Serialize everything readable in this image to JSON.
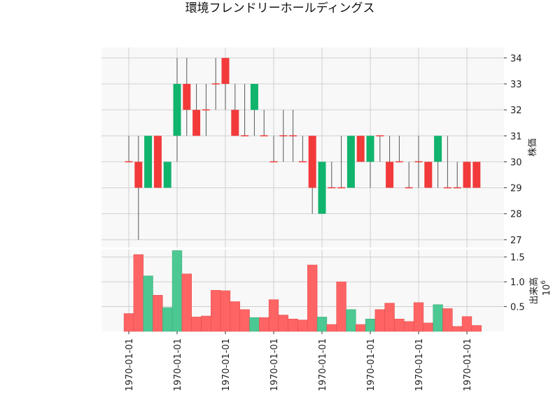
{
  "chart_data": {
    "type": "candlestick",
    "title": "環境フレンドリーホールディングス",
    "colors": {
      "up": "#10b46c",
      "down": "#f23a3a",
      "volume_up": "#4cc892",
      "volume_down": "#ff6464",
      "panel_bg": "#f8f8f8",
      "grid": "#d0d0d0"
    },
    "x_tick_labels": [
      "1970-01-01",
      "1970-01-01",
      "1970-01-01",
      "1970-01-01",
      "1970-01-01",
      "1970-01-01",
      "1970-01-01",
      "1970-01-01"
    ],
    "price_axis": {
      "label": "株価",
      "ylim": [
        26.7,
        34.4
      ],
      "ticks": [
        "27",
        "28",
        "29",
        "30",
        "31",
        "32",
        "33",
        "34"
      ]
    },
    "volume_axis": {
      "label": "出来高",
      "scale_label": "10",
      "scale_exp": "6",
      "ylim": [
        0,
        1.65
      ],
      "ticks": [
        "0.5",
        "1.0",
        "1.5"
      ]
    },
    "candles": [
      {
        "o": 30,
        "h": 31,
        "l": 30,
        "c": 30,
        "v": 0.36
      },
      {
        "o": 30,
        "h": 31,
        "l": 27,
        "c": 29,
        "v": 1.55
      },
      {
        "o": 29,
        "h": 31,
        "l": 29,
        "c": 31,
        "v": 1.12
      },
      {
        "o": 31,
        "h": 31,
        "l": 29,
        "c": 29,
        "v": 0.73
      },
      {
        "o": 29,
        "h": 30,
        "l": 29,
        "c": 30,
        "v": 0.48
      },
      {
        "o": 31,
        "h": 34,
        "l": 30,
        "c": 33,
        "v": 1.63
      },
      {
        "o": 33,
        "h": 34,
        "l": 31,
        "c": 32,
        "v": 1.16
      },
      {
        "o": 32,
        "h": 33,
        "l": 31,
        "c": 31,
        "v": 0.29
      },
      {
        "o": 32,
        "h": 33,
        "l": 31,
        "c": 32,
        "v": 0.31
      },
      {
        "o": 33,
        "h": 34,
        "l": 32,
        "c": 33,
        "v": 0.83
      },
      {
        "o": 34,
        "h": 34,
        "l": 32,
        "c": 33,
        "v": 0.82
      },
      {
        "o": 32,
        "h": 33,
        "l": 31,
        "c": 31,
        "v": 0.6
      },
      {
        "o": 31,
        "h": 33,
        "l": 31,
        "c": 31,
        "v": 0.44
      },
      {
        "o": 32,
        "h": 33,
        "l": 31,
        "c": 33,
        "v": 0.28
      },
      {
        "o": 31,
        "h": 32,
        "l": 31,
        "c": 31,
        "v": 0.28
      },
      {
        "o": 30,
        "h": 31,
        "l": 30,
        "c": 30,
        "v": 0.64
      },
      {
        "o": 31,
        "h": 32,
        "l": 30,
        "c": 31,
        "v": 0.33
      },
      {
        "o": 31,
        "h": 32,
        "l": 30,
        "c": 31,
        "v": 0.25
      },
      {
        "o": 30,
        "h": 31,
        "l": 30,
        "c": 30,
        "v": 0.23
      },
      {
        "o": 31,
        "h": 31,
        "l": 28,
        "c": 29,
        "v": 1.34
      },
      {
        "o": 28,
        "h": 30,
        "l": 28,
        "c": 30,
        "v": 0.29
      },
      {
        "o": 29,
        "h": 30,
        "l": 29,
        "c": 29,
        "v": 0.14
      },
      {
        "o": 29,
        "h": 31,
        "l": 29,
        "c": 29,
        "v": 1.0
      },
      {
        "o": 29,
        "h": 31,
        "l": 29,
        "c": 31,
        "v": 0.44
      },
      {
        "o": 31,
        "h": 31,
        "l": 30,
        "c": 30,
        "v": 0.14
      },
      {
        "o": 30,
        "h": 31,
        "l": 29,
        "c": 31,
        "v": 0.25
      },
      {
        "o": 31,
        "h": 31,
        "l": 30,
        "c": 31,
        "v": 0.44
      },
      {
        "o": 30,
        "h": 31,
        "l": 29,
        "c": 29,
        "v": 0.57
      },
      {
        "o": 30,
        "h": 31,
        "l": 30,
        "c": 30,
        "v": 0.25
      },
      {
        "o": 29,
        "h": 30,
        "l": 29,
        "c": 29,
        "v": 0.2
      },
      {
        "o": 30,
        "h": 31,
        "l": 29,
        "c": 30,
        "v": 0.58
      },
      {
        "o": 30,
        "h": 30,
        "l": 29,
        "c": 29,
        "v": 0.17
      },
      {
        "o": 30,
        "h": 31,
        "l": 29,
        "c": 31,
        "v": 0.54
      },
      {
        "o": 29,
        "h": 31,
        "l": 29,
        "c": 29,
        "v": 0.46
      },
      {
        "o": 29,
        "h": 30,
        "l": 29,
        "c": 29,
        "v": 0.1
      },
      {
        "o": 30,
        "h": 30,
        "l": 29,
        "c": 29,
        "v": 0.3
      },
      {
        "o": 30,
        "h": 30,
        "l": 29,
        "c": 29,
        "v": 0.12
      }
    ]
  }
}
